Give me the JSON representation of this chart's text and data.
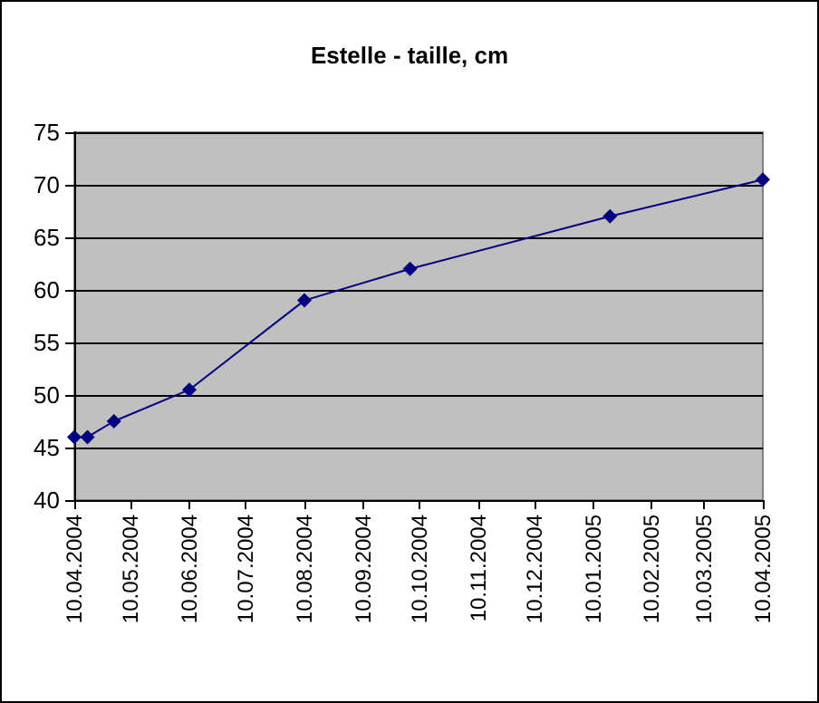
{
  "chart_data": {
    "type": "line",
    "title": "Estelle - taille, cm",
    "x": [
      "2004-04-10",
      "2004-04-17",
      "2004-05-01",
      "2004-06-10",
      "2004-08-10",
      "2004-10-05",
      "2005-01-19",
      "2005-04-10"
    ],
    "series": [
      {
        "color": "#000080",
        "values": [
          46,
          46,
          47.5,
          50.5,
          59,
          62,
          67,
          70.5
        ]
      }
    ],
    "xlim": [
      "2004-04-10",
      "2005-04-10"
    ],
    "xticks": [
      {
        "value": "2004-04-10",
        "label": "10.04.2004"
      },
      {
        "value": "2004-05-10",
        "label": "10.05.2004"
      },
      {
        "value": "2004-06-10",
        "label": "10.06.2004"
      },
      {
        "value": "2004-07-10",
        "label": "10.07.2004"
      },
      {
        "value": "2004-08-10",
        "label": "10.08.2004"
      },
      {
        "value": "2004-09-10",
        "label": "10.09.2004"
      },
      {
        "value": "2004-10-10",
        "label": "10.10.2004"
      },
      {
        "value": "2004-11-10",
        "label": "10.11.2004"
      },
      {
        "value": "2004-12-10",
        "label": "10.12.2004"
      },
      {
        "value": "2005-01-10",
        "label": "10.01.2005"
      },
      {
        "value": "2005-02-10",
        "label": "10.02.2005"
      },
      {
        "value": "2005-03-10",
        "label": "10.03.2005"
      },
      {
        "value": "2005-04-10",
        "label": "10.04.2005"
      }
    ],
    "ylim": [
      40,
      75
    ],
    "yticks": [
      40,
      45,
      50,
      55,
      60,
      65,
      70,
      75
    ],
    "grid": "y",
    "marker": "diamond",
    "line_style": "solid"
  }
}
